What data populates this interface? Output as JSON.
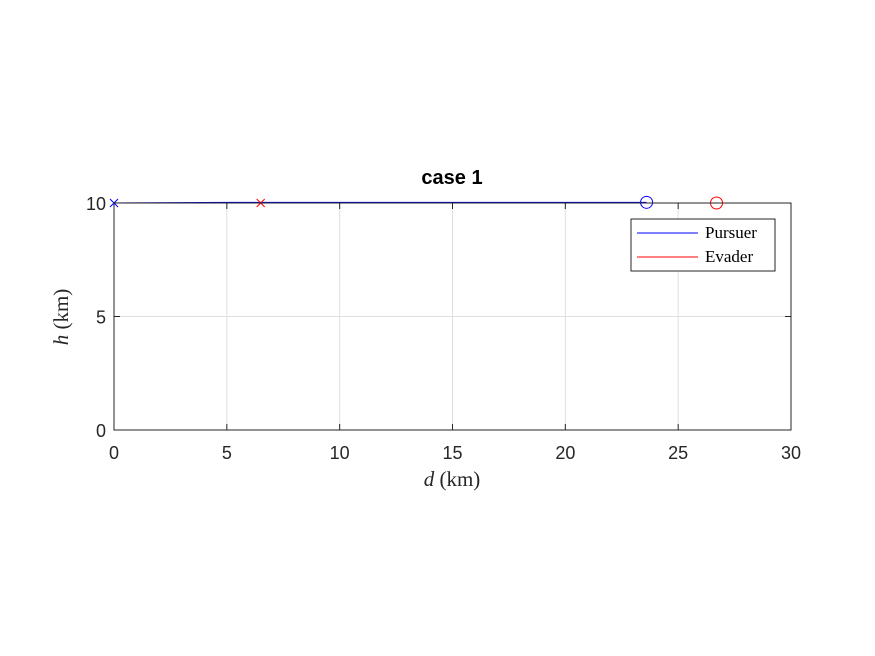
{
  "chart_data": {
    "type": "line",
    "title": "case 1",
    "xlabel_var": "d",
    "xlabel_unit": " (km)",
    "ylabel_var": "h",
    "ylabel_unit": " (km)",
    "xlim": [
      0,
      30
    ],
    "ylim": [
      0,
      10
    ],
    "xticks": [
      0,
      5,
      10,
      15,
      20,
      25,
      30
    ],
    "yticks": [
      0,
      5,
      10
    ],
    "grid": true,
    "legend_position": "top-right",
    "series": [
      {
        "name": "Pursuer",
        "color": "#0000ff",
        "x": [
          0,
          5,
          10,
          15,
          20,
          23.6
        ],
        "y": [
          10.0,
          10.03,
          10.03,
          10.03,
          10.03,
          10.03
        ],
        "start_marker": "x",
        "end_marker": "circle"
      },
      {
        "name": "Evader",
        "color": "#ff0000",
        "x": [
          6.5,
          10,
          15,
          20,
          26.7
        ],
        "y": [
          10.0,
          10.0,
          10.0,
          10.0,
          10.0
        ],
        "start_marker": "x",
        "end_marker": "circle"
      }
    ]
  }
}
